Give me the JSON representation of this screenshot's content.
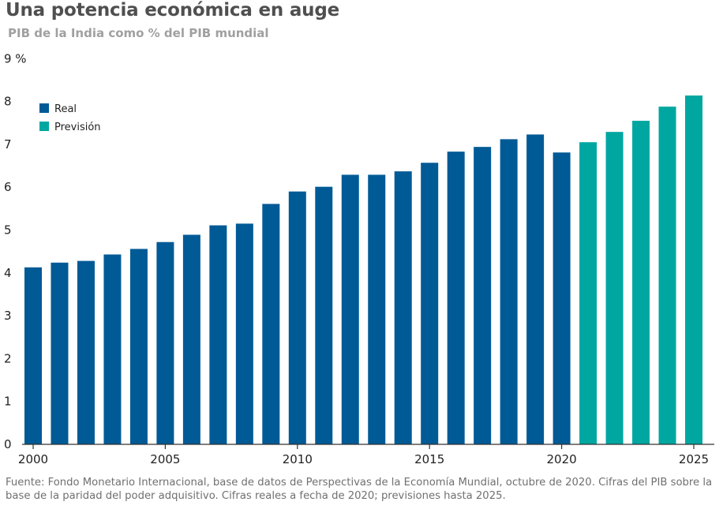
{
  "header": {
    "title": "Una potencia económica en auge",
    "subtitle": "PIB de la India como % del PIB mundial"
  },
  "colors": {
    "real": "#005a96",
    "forecast": "#00a7a1",
    "axis": "#333333"
  },
  "chart_data": {
    "type": "bar",
    "title": "Una potencia económica en auge",
    "subtitle": "PIB de la India como % del PIB mundial",
    "xlabel": "",
    "ylabel": "",
    "ylim": [
      0,
      9
    ],
    "yticks": [
      0,
      1,
      2,
      3,
      4,
      5,
      6,
      7,
      8,
      9
    ],
    "ytick_labels": [
      "0",
      "1",
      "2",
      "3",
      "4",
      "5",
      "6",
      "7",
      "8",
      "9 %"
    ],
    "xtick_labels": [
      "2000",
      "2005",
      "2010",
      "2015",
      "2020",
      "2025"
    ],
    "grid": false,
    "legend": {
      "position": "top-left",
      "entries": [
        {
          "label": "Real",
          "series": "real"
        },
        {
          "label": "Previsión",
          "series": "forecast"
        }
      ]
    },
    "categories": [
      "2000",
      "2001",
      "2002",
      "2003",
      "2004",
      "2005",
      "2006",
      "2007",
      "2008",
      "2009",
      "2010",
      "2011",
      "2012",
      "2013",
      "2014",
      "2015",
      "2016",
      "2017",
      "2018",
      "2019",
      "2020",
      "2021",
      "2022",
      "2023",
      "2024",
      "2025"
    ],
    "values": [
      4.13,
      4.24,
      4.28,
      4.43,
      4.56,
      4.72,
      4.89,
      5.11,
      5.15,
      5.61,
      5.9,
      6.01,
      6.29,
      6.29,
      6.37,
      6.57,
      6.83,
      6.94,
      7.12,
      7.23,
      6.81,
      7.05,
      7.29,
      7.55,
      7.88,
      8.14
    ],
    "series_type": [
      "real",
      "real",
      "real",
      "real",
      "real",
      "real",
      "real",
      "real",
      "real",
      "real",
      "real",
      "real",
      "real",
      "real",
      "real",
      "real",
      "real",
      "real",
      "real",
      "real",
      "real",
      "forecast",
      "forecast",
      "forecast",
      "forecast",
      "forecast"
    ]
  },
  "footnote": "Fuente: Fondo Monetario Internacional, base de datos de Perspectivas de la Economía Mundial, octubre de 2020. Cifras del PIB sobre la base de la paridad del poder adquisitivo. Cifras reales a fecha de 2020; previsiones hasta 2025."
}
